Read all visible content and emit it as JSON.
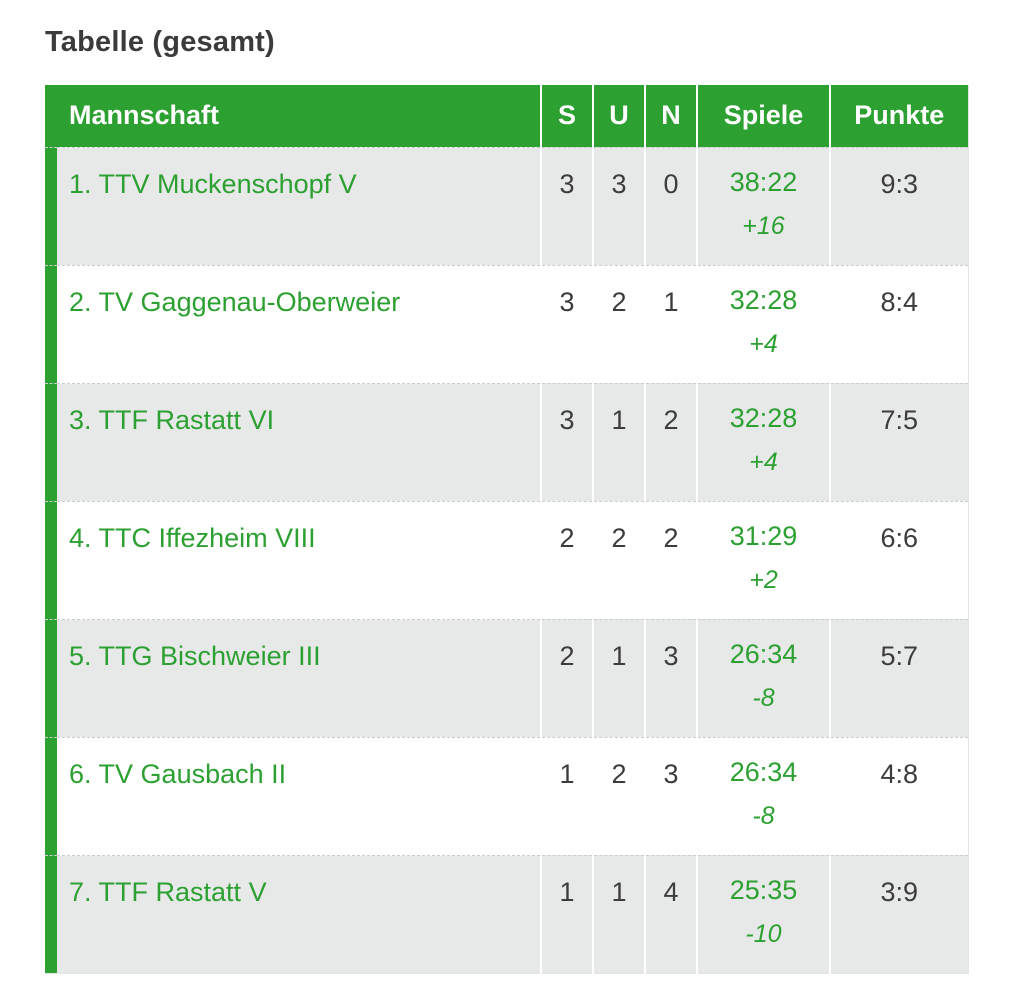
{
  "page": {
    "title": "Tabelle (gesamt)"
  },
  "colors": {
    "accent_green": "#2da032",
    "row_alt_gray": "#e7e9e9",
    "header_text": "#ffffff",
    "body_text": "#3c3c3b"
  },
  "table": {
    "columns": [
      "Mannschaft",
      "S",
      "U",
      "N",
      "Spiele",
      "Punkte"
    ],
    "rows": [
      {
        "rank": "1.",
        "team": "TTV Muckenschopf V",
        "s": "3",
        "u": "3",
        "n": "0",
        "spiele": "38:22",
        "diff": "+16",
        "punkte": "9:3"
      },
      {
        "rank": "2.",
        "team": "TV Gaggenau-Oberweier",
        "s": "3",
        "u": "2",
        "n": "1",
        "spiele": "32:28",
        "diff": "+4",
        "punkte": "8:4"
      },
      {
        "rank": "3.",
        "team": "TTF Rastatt VI",
        "s": "3",
        "u": "1",
        "n": "2",
        "spiele": "32:28",
        "diff": "+4",
        "punkte": "7:5"
      },
      {
        "rank": "4.",
        "team": "TTC Iffezheim VIII",
        "s": "2",
        "u": "2",
        "n": "2",
        "spiele": "31:29",
        "diff": "+2",
        "punkte": "6:6"
      },
      {
        "rank": "5.",
        "team": "TTG Bischweier III",
        "s": "2",
        "u": "1",
        "n": "3",
        "spiele": "26:34",
        "diff": "-8",
        "punkte": "5:7"
      },
      {
        "rank": "6.",
        "team": "TV Gausbach II",
        "s": "1",
        "u": "2",
        "n": "3",
        "spiele": "26:34",
        "diff": "-8",
        "punkte": "4:8"
      },
      {
        "rank": "7.",
        "team": "TTF Rastatt V",
        "s": "1",
        "u": "1",
        "n": "4",
        "spiele": "25:35",
        "diff": "-10",
        "punkte": "3:9"
      }
    ]
  },
  "chart_data": {
    "type": "table",
    "title": "Tabelle (gesamt)",
    "columns": [
      "Mannschaft",
      "S",
      "U",
      "N",
      "Spiele",
      "Punkte"
    ],
    "rows": [
      [
        "1. TTV Muckenschopf V",
        3,
        3,
        0,
        "38:22 +16",
        "9:3"
      ],
      [
        "2. TV Gaggenau-Oberweier",
        3,
        2,
        1,
        "32:28 +4",
        "8:4"
      ],
      [
        "3. TTF Rastatt VI",
        3,
        1,
        2,
        "32:28 +4",
        "7:5"
      ],
      [
        "4. TTC Iffezheim VIII",
        2,
        2,
        2,
        "31:29 +2",
        "6:6"
      ],
      [
        "5. TTG Bischweier III",
        2,
        1,
        3,
        "26:34 -8",
        "5:7"
      ],
      [
        "6. TV Gausbach II",
        1,
        2,
        3,
        "26:34 -8",
        "4:8"
      ],
      [
        "7. TTF Rastatt V",
        1,
        1,
        4,
        "25:35 -10",
        "3:9"
      ]
    ]
  }
}
